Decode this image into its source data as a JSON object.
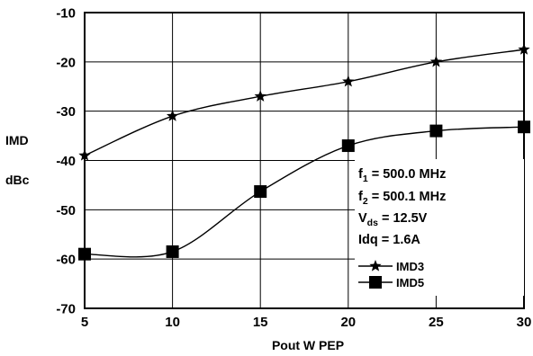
{
  "chart_data": {
    "type": "line",
    "title": "",
    "xlabel": "Pout W PEP",
    "ylabel_line1": "IMD",
    "ylabel_line2": "dBc",
    "xlim": [
      5,
      30
    ],
    "ylim": [
      -70,
      -10
    ],
    "x_ticks": [
      "5",
      "10",
      "15",
      "20",
      "25",
      "30"
    ],
    "y_ticks": [
      "-10",
      "-20",
      "-30",
      "-40",
      "-50",
      "-60",
      "-70"
    ],
    "grid": true,
    "legend_position": "right",
    "annotations": {
      "f1": {
        "main": "f",
        "sub": "1",
        "rest": " = 500.0 MHz"
      },
      "f2": {
        "main": "f",
        "sub": "2",
        "rest": " = 500.1 MHz"
      },
      "vds": {
        "main": "V",
        "sub": "ds",
        "rest": " = 12.5V"
      },
      "idq": {
        "text": "Idq = 1.6A"
      }
    },
    "series": [
      {
        "name": "IMD3",
        "marker": "star",
        "x": [
          5,
          10,
          15,
          20,
          25,
          30
        ],
        "y": [
          -39,
          -31,
          -27,
          -24,
          -20,
          -17.5
        ]
      },
      {
        "name": "IMD5",
        "marker": "square",
        "x": [
          5,
          10,
          15,
          20,
          25,
          30
        ],
        "y": [
          -59,
          -58.5,
          -46.3,
          -37,
          -34,
          -33.2
        ]
      }
    ]
  }
}
